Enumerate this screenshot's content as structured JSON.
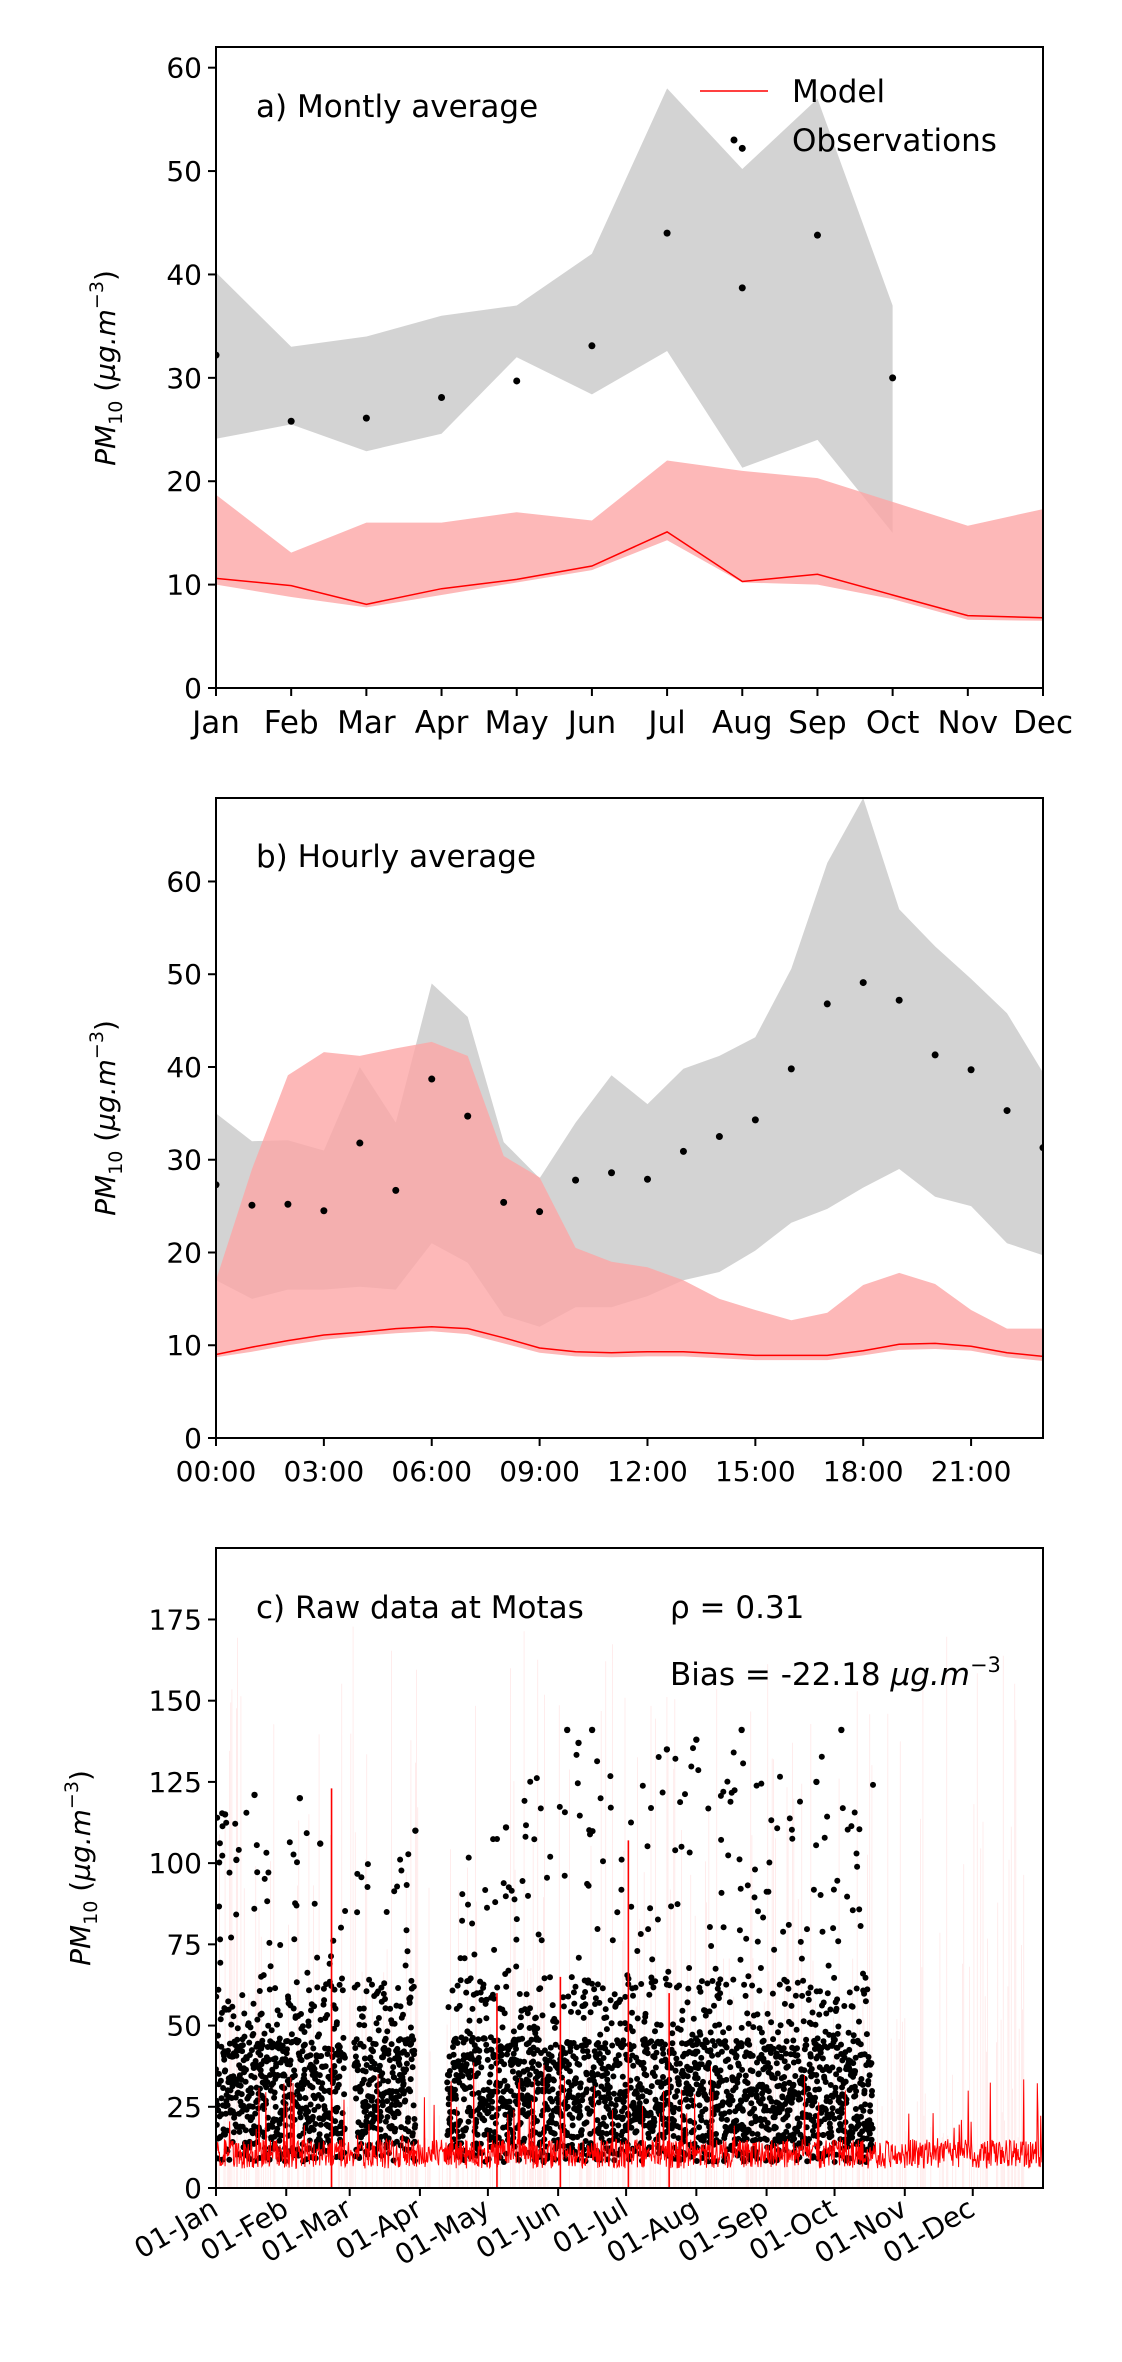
{
  "colors": {
    "model": "#ff0000",
    "model_band": "#fca6a6",
    "obs_band": "#c8c8c8",
    "obs_points": "#000000"
  },
  "legend": {
    "model_label": "Model",
    "obs_label": "Observations"
  },
  "chart_data": [
    {
      "id": "a",
      "type": "line",
      "title": "a) Montly average",
      "ylabel": "PM10 (µg.m-3)",
      "categories": [
        "Jan",
        "Feb",
        "Mar",
        "Apr",
        "May",
        "Jun",
        "Jul",
        "Aug",
        "Sep",
        "Oct",
        "Nov",
        "Dec"
      ],
      "ylim": [
        0,
        62
      ],
      "yticks": [
        0,
        10,
        20,
        30,
        40,
        50,
        60
      ],
      "legend_position": "top-right",
      "series": [
        {
          "name": "Model",
          "kind": "line",
          "values": [
            10.6,
            9.9,
            8.1,
            9.6,
            10.5,
            11.8,
            15.1,
            10.3,
            11.0,
            9.0,
            7.0,
            6.8
          ]
        },
        {
          "kind": "band",
          "lower": [
            10.0,
            8.8,
            7.8,
            9.0,
            10.2,
            11.4,
            14.3,
            10.2,
            10.0,
            8.6,
            6.6,
            6.5
          ],
          "upper": [
            18.7,
            13.1,
            16.0,
            16.0,
            17.0,
            16.2,
            22.0,
            21.0,
            20.3,
            18.0,
            15.7,
            17.3
          ]
        },
        {
          "kind": "band",
          "lower": [
            24.1,
            25.5,
            22.9,
            24.6,
            32.0,
            28.4,
            32.6,
            21.3,
            24.0,
            15.0,
            null,
            null
          ],
          "upper": [
            40.2,
            33.0,
            34.0,
            36.0,
            37.0,
            42.0,
            58.0,
            50.2,
            57.0,
            37.0,
            null,
            null
          ]
        },
        {
          "name": "Observations",
          "kind": "points",
          "values": [
            32.2,
            25.8,
            26.1,
            28.1,
            29.7,
            33.1,
            44.0,
            38.7,
            43.8,
            30.0,
            null,
            null
          ]
        }
      ],
      "extra_points": [
        {
          "x": "Aug",
          "y": 52.2
        }
      ]
    },
    {
      "id": "b",
      "type": "line",
      "title": "b) Hourly average",
      "ylabel": "PM10 (µg.m-3)",
      "x": [
        0,
        1,
        2,
        3,
        4,
        5,
        6,
        7,
        8,
        9,
        10,
        11,
        12,
        13,
        14,
        15,
        16,
        17,
        18,
        19,
        20,
        21,
        22,
        23
      ],
      "xticks": [
        "00:00",
        "03:00",
        "06:00",
        "09:00",
        "12:00",
        "15:00",
        "18:00",
        "21:00"
      ],
      "xtick_hours": [
        0,
        3,
        6,
        9,
        12,
        15,
        18,
        21
      ],
      "ylim": [
        0,
        69
      ],
      "yticks": [
        0,
        10,
        20,
        30,
        40,
        50,
        60
      ],
      "series": [
        {
          "name": "Model",
          "kind": "line",
          "values": [
            9.0,
            9.8,
            10.5,
            11.1,
            11.4,
            11.8,
            12.0,
            11.8,
            10.8,
            9.7,
            9.3,
            9.2,
            9.3,
            9.3,
            9.1,
            8.9,
            8.9,
            8.9,
            9.4,
            10.1,
            10.2,
            9.9,
            9.2,
            8.8
          ]
        },
        {
          "kind": "band",
          "lower": [
            8.7,
            9.3,
            10.0,
            10.6,
            11.0,
            11.3,
            11.5,
            11.2,
            10.2,
            9.2,
            8.8,
            8.7,
            8.8,
            8.8,
            8.6,
            8.4,
            8.4,
            8.4,
            8.9,
            9.5,
            9.6,
            9.4,
            8.7,
            8.3
          ],
          "upper": [
            17.0,
            29.0,
            39.1,
            41.6,
            41.2,
            42.0,
            42.7,
            41.2,
            30.4,
            28.1,
            20.5,
            19.0,
            18.4,
            17.0,
            15.0,
            13.8,
            12.7,
            13.5,
            16.5,
            17.8,
            16.6,
            13.8,
            11.8,
            11.8
          ]
        },
        {
          "kind": "band",
          "lower": [
            17.0,
            15.0,
            16.0,
            16.0,
            16.3,
            16.0,
            21.0,
            18.9,
            13.2,
            12.0,
            14.1,
            14.1,
            15.3,
            17.0,
            17.9,
            20.2,
            23.2,
            24.7,
            27.0,
            29.0,
            26.0,
            25.0,
            21.0,
            19.7
          ],
          "upper": [
            35.0,
            32.0,
            32.1,
            31.0,
            40.0,
            34.0,
            49.0,
            45.4,
            31.9,
            28.0,
            34.0,
            39.1,
            36.0,
            39.8,
            41.2,
            43.2,
            50.6,
            62.0,
            69.0,
            57.0,
            53.0,
            49.5,
            45.8,
            39.4
          ]
        },
        {
          "name": "Observations",
          "kind": "points",
          "values": [
            27.3,
            25.1,
            25.2,
            24.5,
            31.8,
            26.7,
            38.7,
            34.7,
            25.4,
            24.4,
            27.8,
            28.6,
            27.9,
            30.9,
            32.5,
            34.3,
            39.8,
            46.8,
            49.1,
            47.2,
            41.3,
            39.7,
            35.3,
            31.3
          ]
        }
      ]
    },
    {
      "id": "c",
      "type": "scatter",
      "title": "c) Raw data at Motas",
      "rho_label": "ρ = 0.31",
      "bias_label": "Bias = -22.18 µg.m-3",
      "ylabel": "PM10 (µg.m-3)",
      "xticks": [
        "01-Jan",
        "01-Feb",
        "01-Mar",
        "01-Apr",
        "01-May",
        "01-Jun",
        "01-Jul",
        "01-Aug",
        "01-Sep",
        "01-Oct",
        "01-Nov",
        "01-Dec"
      ],
      "xtick_days": [
        0,
        31,
        59,
        90,
        120,
        151,
        181,
        212,
        243,
        273,
        304,
        334
      ],
      "xlim": [
        0,
        365
      ],
      "ylim": [
        0,
        197
      ],
      "yticks": [
        0,
        25,
        50,
        75,
        100,
        125,
        150,
        175
      ],
      "observation_gaps": [
        [
          57,
          61
        ],
        [
          88,
          102
        ],
        [
          290,
          365
        ]
      ],
      "observed_envelope_days": [
        0,
        10,
        20,
        31,
        45,
        55,
        65,
        75,
        90,
        102,
        110,
        120,
        130,
        140,
        151,
        160,
        170,
        181,
        190,
        200,
        212,
        222,
        232,
        243,
        252,
        262,
        273,
        282,
        290
      ],
      "observed_envelope_max": [
        115,
        121,
        105,
        120,
        106,
        90,
        108,
        110,
        102,
        80,
        104,
        111,
        104,
        131,
        141,
        137,
        141,
        110,
        138,
        134,
        138,
        128,
        141,
        121,
        130,
        125,
        141,
        120,
        130
      ],
      "highlighted_points": [
        {
          "day": 4,
          "value": 115
        },
        {
          "day": 9,
          "value": 101
        },
        {
          "day": 17,
          "value": 121
        },
        {
          "day": 37,
          "value": 120
        },
        {
          "day": 46,
          "value": 106
        },
        {
          "day": 88,
          "value": 110
        },
        {
          "day": 128,
          "value": 111
        },
        {
          "day": 155,
          "value": 141
        },
        {
          "day": 160,
          "value": 137
        },
        {
          "day": 166,
          "value": 141
        },
        {
          "day": 199,
          "value": 135
        },
        {
          "day": 212,
          "value": 138
        },
        {
          "day": 232,
          "value": 141
        },
        {
          "day": 265,
          "value": 125
        },
        {
          "day": 276,
          "value": 141
        }
      ],
      "model_spikes": [
        {
          "day": 51,
          "value": 123
        },
        {
          "day": 124,
          "value": 60
        },
        {
          "day": 152,
          "value": 65
        },
        {
          "day": 182,
          "value": 107
        },
        {
          "day": 200,
          "value": 60
        }
      ]
    }
  ]
}
